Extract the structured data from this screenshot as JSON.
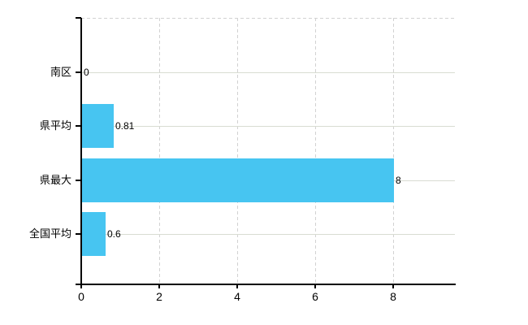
{
  "chart_data": {
    "type": "bar",
    "orientation": "horizontal",
    "title": "",
    "xlabel": "",
    "ylabel": "",
    "categories": [
      "南区",
      "県平均",
      "県最大",
      "全国平均"
    ],
    "values": [
      0,
      0.81,
      8,
      0.6
    ],
    "value_labels": [
      "0",
      "0.81",
      "8",
      "0.6"
    ],
    "x_ticks": [
      0,
      2,
      4,
      6,
      8
    ],
    "x_tick_labels": [
      "0",
      "2",
      "4",
      "6",
      "8"
    ],
    "xlim": [
      0,
      9.6
    ],
    "grid": true,
    "legend": false,
    "gridline_style": {
      "horizontal": "solid",
      "vertical": "dashed",
      "plot_top": "dashed"
    }
  },
  "colors": {
    "bar": "#47C5F1",
    "axis": "#000000",
    "gridline_solid": "#D8DCD2",
    "gridline_dashed": "#D2D2D2",
    "text": "#000000",
    "background": "#FFFFFF"
  }
}
